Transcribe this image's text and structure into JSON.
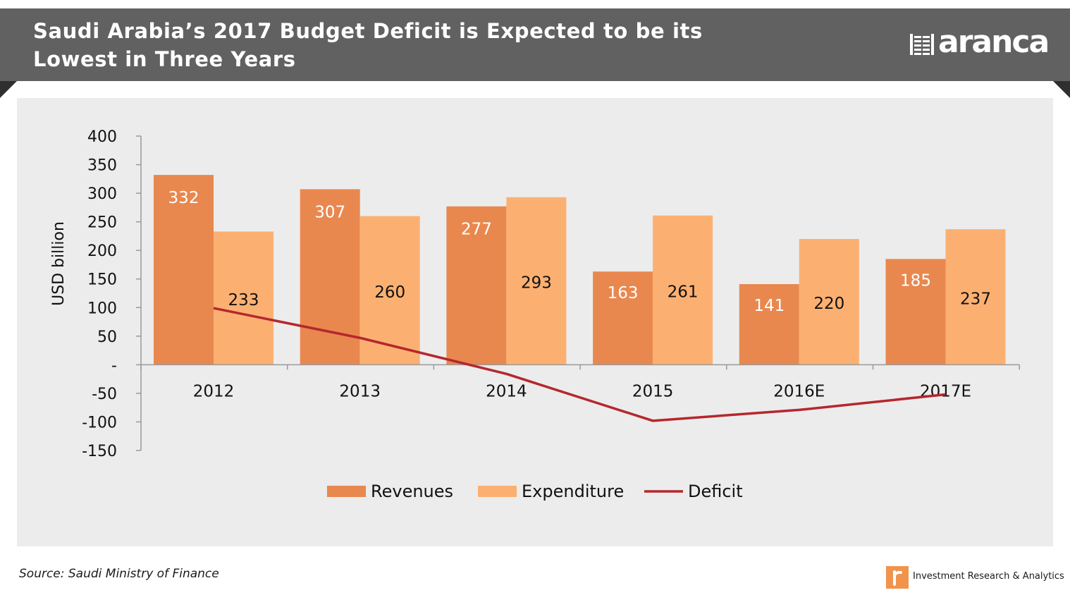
{
  "header": {
    "title_line1": "Saudi Arabia’s 2017 Budget Deficit is Expected to be its",
    "title_line2": "Lowest in Three Years",
    "brand_name": "aranca",
    "brand_icon": "aranca-grid-logo-icon"
  },
  "colors": {
    "header_bg": "#616161",
    "plot_bg": "#ececec",
    "revenues": "#e8884f",
    "expenditure": "#fbb072",
    "deficit": "#b5272d"
  },
  "chart_data": {
    "type": "bar",
    "categories": [
      "2012",
      "2013",
      "2014",
      "2015",
      "2016E",
      "2017E"
    ],
    "series": [
      {
        "name": "Revenues",
        "type": "bar",
        "values": [
          332,
          307,
          277,
          163,
          141,
          185
        ],
        "labels": [
          "332",
          "307",
          "277",
          "163",
          "141",
          "185"
        ]
      },
      {
        "name": "Expenditure",
        "type": "bar",
        "values": [
          233,
          260,
          293,
          261,
          220,
          237
        ],
        "labels": [
          "233",
          "260",
          "293",
          "261",
          "220",
          "237"
        ]
      },
      {
        "name": "Deficit",
        "type": "line",
        "values": [
          99,
          47,
          -16,
          -98,
          -79,
          -52
        ]
      }
    ],
    "ylabel": "USD billion",
    "ylim": [
      -150,
      400
    ],
    "yticks": [
      400,
      350,
      300,
      250,
      200,
      150,
      100,
      50,
      0,
      -50,
      -100,
      -150
    ],
    "ytick_labels": [
      "400",
      "350",
      "300",
      "250",
      "200",
      "150",
      "100",
      "50",
      "-",
      "-50",
      "-100",
      "-150"
    ],
    "grid": false,
    "legend_position": "bottom"
  },
  "footer": {
    "source": "Source: Saudi Ministry of Finance",
    "tagline": "Investment  Research & Analytics",
    "tagline_icon": "aranca-r-badge-icon"
  }
}
